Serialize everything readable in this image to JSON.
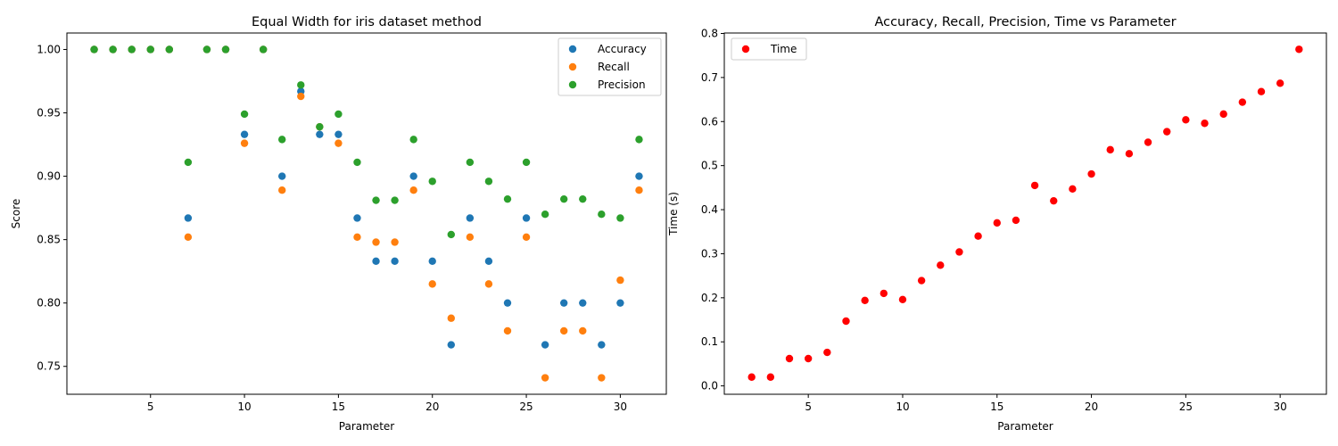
{
  "chart_data": [
    {
      "type": "scatter",
      "title": "Equal Width for iris dataset method",
      "xlabel": "Parameter",
      "ylabel": "Score",
      "xlim": [
        0.55,
        32.45
      ],
      "ylim": [
        0.728,
        1.013
      ],
      "xticks": [
        5,
        10,
        15,
        20,
        25,
        30
      ],
      "yticks": [
        0.75,
        0.8,
        0.85,
        0.9,
        0.95,
        1.0
      ],
      "ytick_labels": [
        "0.75",
        "0.80",
        "0.85",
        "0.90",
        "0.95",
        "1.00"
      ],
      "legend_position": "top-right",
      "grid": false,
      "x": [
        2,
        3,
        4,
        5,
        6,
        7,
        8,
        9,
        10,
        11,
        12,
        13,
        14,
        15,
        16,
        17,
        18,
        19,
        20,
        21,
        22,
        23,
        24,
        25,
        26,
        27,
        28,
        29,
        30,
        31
      ],
      "series": [
        {
          "name": "Accuracy",
          "color": "#1f77b4",
          "values": [
            1.0,
            1.0,
            1.0,
            1.0,
            1.0,
            0.867,
            1.0,
            1.0,
            0.933,
            1.0,
            0.9,
            0.967,
            0.933,
            0.933,
            0.867,
            0.833,
            0.833,
            0.9,
            0.833,
            0.767,
            0.867,
            0.833,
            0.8,
            0.867,
            0.767,
            0.8,
            0.8,
            0.767,
            0.8,
            0.9
          ]
        },
        {
          "name": "Recall",
          "color": "#ff7f0e",
          "values": [
            1.0,
            1.0,
            1.0,
            1.0,
            1.0,
            0.852,
            1.0,
            1.0,
            0.926,
            1.0,
            0.889,
            0.963,
            0.939,
            0.926,
            0.852,
            0.848,
            0.848,
            0.889,
            0.815,
            0.788,
            0.852,
            0.815,
            0.778,
            0.852,
            0.741,
            0.778,
            0.778,
            0.741,
            0.818,
            0.889
          ]
        },
        {
          "name": "Precision",
          "color": "#2ca02c",
          "values": [
            1.0,
            1.0,
            1.0,
            1.0,
            1.0,
            0.911,
            1.0,
            1.0,
            0.949,
            1.0,
            0.929,
            0.972,
            0.939,
            0.949,
            0.911,
            0.881,
            0.881,
            0.929,
            0.896,
            0.854,
            0.911,
            0.896,
            0.882,
            0.911,
            0.87,
            0.882,
            0.882,
            0.87,
            0.867,
            0.929
          ]
        }
      ]
    },
    {
      "type": "scatter",
      "title": "Accuracy, Recall, Precision, Time vs Parameter",
      "xlabel": "Parameter",
      "ylabel": "Time (s)",
      "xlim": [
        0.55,
        32.45
      ],
      "ylim": [
        -0.019,
        0.801
      ],
      "xticks": [
        5,
        10,
        15,
        20,
        25,
        30
      ],
      "yticks": [
        0.0,
        0.1,
        0.2,
        0.3,
        0.4,
        0.5,
        0.6,
        0.7,
        0.8
      ],
      "ytick_labels": [
        "0.0",
        "0.1",
        "0.2",
        "0.3",
        "0.4",
        "0.5",
        "0.6",
        "0.7",
        "0.8"
      ],
      "legend_position": "top-left",
      "grid": false,
      "x": [
        2,
        3,
        4,
        5,
        6,
        7,
        8,
        9,
        10,
        11,
        12,
        13,
        14,
        15,
        16,
        17,
        18,
        19,
        20,
        21,
        22,
        23,
        24,
        25,
        26,
        27,
        28,
        29,
        30,
        31
      ],
      "series": [
        {
          "name": "Time",
          "color": "#ff0000",
          "values": [
            0.02,
            0.02,
            0.062,
            0.062,
            0.076,
            0.147,
            0.194,
            0.21,
            0.196,
            0.239,
            0.274,
            0.304,
            0.34,
            0.37,
            0.376,
            0.455,
            0.42,
            0.447,
            0.481,
            0.536,
            0.527,
            0.553,
            0.577,
            0.604,
            0.596,
            0.617,
            0.644,
            0.668,
            0.687,
            0.764
          ]
        }
      ]
    }
  ]
}
